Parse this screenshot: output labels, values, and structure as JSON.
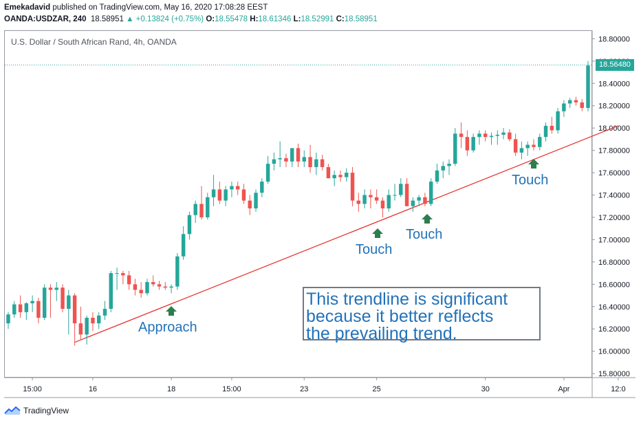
{
  "header": {
    "author": "Emekadavid",
    "published_text": "published on TradingView.com, May 16, 2020 17:08:28 EEST",
    "symbol": "OANDA:USDZAR, 240",
    "last": "18.58951",
    "change": "▲ +0.13824 (+0.75%)",
    "o_label": "O:",
    "o_val": "18.55478",
    "h_label": "H:",
    "h_val": "18.61346",
    "l_label": "L:",
    "l_val": "18.52991",
    "c_label": "C:",
    "c_val": "18.58951"
  },
  "chart_title": "U.S. Dollar / South African Rand, 4h, OANDA",
  "footer": {
    "brand": "TradingView"
  },
  "annotations": {
    "approach": "Approach",
    "touch1": "Touch",
    "touch2": "Touch",
    "touch3": "Touch",
    "box_line1": "This trendline is significant",
    "box_line2": "because it better reflects",
    "box_line3": "the prevailing trend."
  },
  "colors": {
    "up": "#26a69a",
    "down": "#ef5350",
    "trendline": "#e53935",
    "arrow": "#2e7d4f",
    "annotation_text": "#2272b9",
    "price_line": "#26a69a"
  },
  "chart_data": {
    "type": "candlestick",
    "title": "U.S. Dollar / South African Rand, 4h, OANDA",
    "y_ticks": [
      "18.80000",
      "18.60000",
      "18.40000",
      "18.20000",
      "18.00000",
      "17.80000",
      "17.60000",
      "17.40000",
      "17.20000",
      "17.00000",
      "16.80000",
      "16.60000",
      "16.40000",
      "16.20000",
      "16.00000",
      "15.80000"
    ],
    "y_tick_values": [
      18.8,
      18.6,
      18.4,
      18.2,
      18.0,
      17.8,
      17.6,
      17.4,
      17.2,
      17.0,
      16.8,
      16.6,
      16.4,
      16.2,
      16.0,
      15.8
    ],
    "ylim": [
      15.77,
      18.87
    ],
    "x_ticks": [
      "15:00",
      "16",
      "18",
      "15:00",
      "23",
      "25",
      "30",
      "Apr",
      "12:0"
    ],
    "x_tick_index": [
      4,
      14,
      27,
      37,
      49,
      61,
      79,
      92,
      101
    ],
    "current_price": 18.5648,
    "current_price_label": "18.56480",
    "grid": false,
    "candles": [
      [
        16.25,
        16.35,
        16.2,
        16.33
      ],
      [
        16.33,
        16.45,
        16.3,
        16.42
      ],
      [
        16.42,
        16.5,
        16.3,
        16.35
      ],
      [
        16.35,
        16.44,
        16.28,
        16.43
      ],
      [
        16.43,
        16.5,
        16.35,
        16.45
      ],
      [
        16.45,
        16.48,
        16.25,
        16.3
      ],
      [
        16.3,
        16.6,
        16.28,
        16.57
      ],
      [
        16.57,
        16.6,
        16.3,
        16.55
      ],
      [
        16.55,
        16.62,
        16.45,
        16.57
      ],
      [
        16.57,
        16.6,
        16.35,
        16.38
      ],
      [
        16.38,
        16.55,
        16.15,
        16.5
      ],
      [
        16.5,
        16.52,
        16.05,
        16.25
      ],
      [
        16.25,
        16.4,
        16.1,
        16.15
      ],
      [
        16.15,
        16.32,
        16.06,
        16.3
      ],
      [
        16.3,
        16.35,
        16.18,
        16.25
      ],
      [
        16.25,
        16.35,
        16.2,
        16.32
      ],
      [
        16.32,
        16.45,
        16.28,
        16.38
      ],
      [
        16.38,
        16.72,
        16.35,
        16.7
      ],
      [
        16.7,
        16.75,
        16.55,
        16.7
      ],
      [
        16.7,
        16.72,
        16.6,
        16.68
      ],
      [
        16.68,
        16.72,
        16.55,
        16.6
      ],
      [
        16.6,
        16.65,
        16.5,
        16.55
      ],
      [
        16.55,
        16.62,
        16.48,
        16.52
      ],
      [
        16.52,
        16.65,
        16.5,
        16.62
      ],
      [
        16.62,
        16.68,
        16.58,
        16.6
      ],
      [
        16.6,
        16.63,
        16.55,
        16.58
      ],
      [
        16.58,
        16.62,
        16.55,
        16.57
      ],
      [
        16.57,
        16.6,
        16.52,
        16.58
      ],
      [
        16.58,
        16.88,
        16.55,
        16.85
      ],
      [
        16.85,
        17.12,
        16.82,
        17.05
      ],
      [
        17.05,
        17.25,
        17.0,
        17.22
      ],
      [
        17.22,
        17.35,
        17.15,
        17.32
      ],
      [
        17.32,
        17.48,
        17.18,
        17.2
      ],
      [
        17.2,
        17.42,
        17.18,
        17.38
      ],
      [
        17.38,
        17.58,
        17.3,
        17.45
      ],
      [
        17.45,
        17.52,
        17.32,
        17.35
      ],
      [
        17.35,
        17.48,
        17.3,
        17.45
      ],
      [
        17.45,
        17.52,
        17.38,
        17.48
      ],
      [
        17.48,
        17.52,
        17.4,
        17.45
      ],
      [
        17.45,
        17.5,
        17.32,
        17.35
      ],
      [
        17.35,
        17.4,
        17.22,
        17.28
      ],
      [
        17.28,
        17.45,
        17.25,
        17.42
      ],
      [
        17.42,
        17.55,
        17.38,
        17.52
      ],
      [
        17.52,
        17.75,
        17.5,
        17.68
      ],
      [
        17.68,
        17.78,
        17.62,
        17.72
      ],
      [
        17.72,
        17.88,
        17.65,
        17.73
      ],
      [
        17.73,
        17.77,
        17.65,
        17.7
      ],
      [
        17.7,
        17.82,
        17.65,
        17.82
      ],
      [
        17.82,
        17.86,
        17.65,
        17.7
      ],
      [
        17.7,
        17.8,
        17.65,
        17.74
      ],
      [
        17.74,
        17.85,
        17.6,
        17.65
      ],
      [
        17.65,
        17.78,
        17.58,
        17.72
      ],
      [
        17.72,
        17.76,
        17.62,
        17.65
      ],
      [
        17.65,
        17.68,
        17.55,
        17.55
      ],
      [
        17.55,
        17.62,
        17.48,
        17.58
      ],
      [
        17.58,
        17.62,
        17.52,
        17.56
      ],
      [
        17.56,
        17.64,
        17.52,
        17.6
      ],
      [
        17.6,
        17.65,
        17.3,
        17.35
      ],
      [
        17.35,
        17.42,
        17.25,
        17.32
      ],
      [
        17.32,
        17.45,
        17.28,
        17.4
      ],
      [
        17.4,
        17.45,
        17.28,
        17.38
      ],
      [
        17.38,
        17.45,
        17.32,
        17.35
      ],
      [
        17.35,
        17.38,
        17.2,
        17.28
      ],
      [
        17.28,
        17.45,
        17.25,
        17.4
      ],
      [
        17.4,
        17.5,
        17.35,
        17.4
      ],
      [
        17.4,
        17.55,
        17.38,
        17.5
      ],
      [
        17.5,
        17.55,
        17.3,
        17.3
      ],
      [
        17.3,
        17.38,
        17.25,
        17.35
      ],
      [
        17.35,
        17.4,
        17.3,
        17.38
      ],
      [
        17.38,
        17.42,
        17.3,
        17.32
      ],
      [
        17.32,
        17.55,
        17.3,
        17.52
      ],
      [
        17.52,
        17.68,
        17.5,
        17.62
      ],
      [
        17.62,
        17.7,
        17.55,
        17.66
      ],
      [
        17.66,
        17.72,
        17.58,
        17.68
      ],
      [
        17.68,
        18.0,
        17.66,
        17.95
      ],
      [
        17.95,
        18.05,
        17.82,
        17.92
      ],
      [
        17.92,
        17.98,
        17.75,
        17.8
      ],
      [
        17.8,
        17.95,
        17.78,
        17.92
      ],
      [
        17.92,
        17.98,
        17.85,
        17.95
      ],
      [
        17.95,
        17.98,
        17.88,
        17.92
      ],
      [
        17.92,
        17.96,
        17.85,
        17.93
      ],
      [
        17.93,
        17.98,
        17.85,
        17.94
      ],
      [
        17.94,
        18.0,
        17.9,
        17.96
      ],
      [
        17.96,
        17.99,
        17.88,
        17.9
      ],
      [
        17.9,
        17.95,
        17.75,
        17.78
      ],
      [
        17.78,
        17.88,
        17.72,
        17.82
      ],
      [
        17.82,
        17.88,
        17.75,
        17.85
      ],
      [
        17.85,
        17.9,
        17.8,
        17.83
      ],
      [
        17.83,
        17.95,
        17.8,
        17.92
      ],
      [
        17.92,
        18.05,
        17.88,
        18.02
      ],
      [
        18.02,
        18.1,
        17.95,
        17.98
      ],
      [
        17.98,
        18.18,
        17.95,
        18.15
      ],
      [
        18.15,
        18.25,
        18.1,
        18.22
      ],
      [
        18.22,
        18.27,
        18.18,
        18.25
      ],
      [
        18.25,
        18.28,
        18.2,
        18.23
      ],
      [
        18.23,
        18.26,
        18.15,
        18.18
      ],
      [
        18.18,
        18.6,
        18.15,
        18.56
      ]
    ],
    "trendline": {
      "from": [
        11,
        16.08
      ],
      "to": [
        101,
        18.02
      ]
    }
  }
}
